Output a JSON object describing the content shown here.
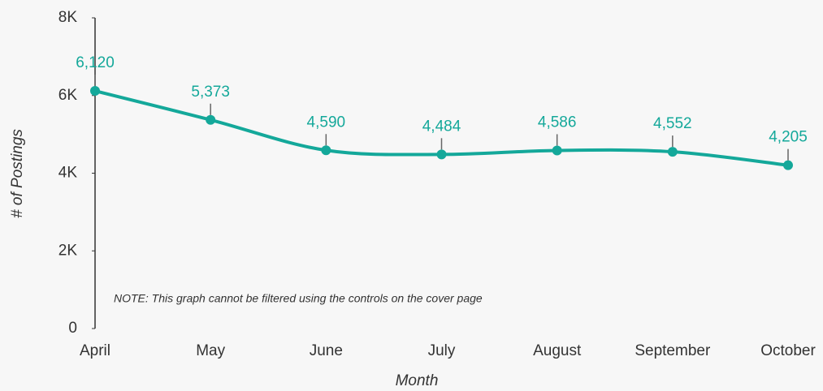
{
  "chart_data": {
    "type": "line",
    "categories": [
      "April",
      "May",
      "June",
      "July",
      "August",
      "September",
      "October"
    ],
    "series": [
      {
        "name": "# of Postings",
        "color": "#14a89a",
        "values": [
          6120,
          5373,
          4590,
          4484,
          4586,
          4552,
          4205
        ],
        "value_labels": [
          "6,120",
          "5,373",
          "4,590",
          "4,484",
          "4,586",
          "4,552",
          "4,205"
        ]
      }
    ],
    "ylim": [
      0,
      8000
    ],
    "yticks": [
      0,
      {
        "value": 2000,
        "label": "2K"
      },
      {
        "value": 4000,
        "label": "4K"
      },
      {
        "value": 6000,
        "label": "6K"
      },
      {
        "value": 8000,
        "label": "8K"
      }
    ],
    "x_label": "Month",
    "y_label": "# of Postings",
    "annotation": "NOTE: This graph cannot be filtered using the controls on the cover page"
  }
}
